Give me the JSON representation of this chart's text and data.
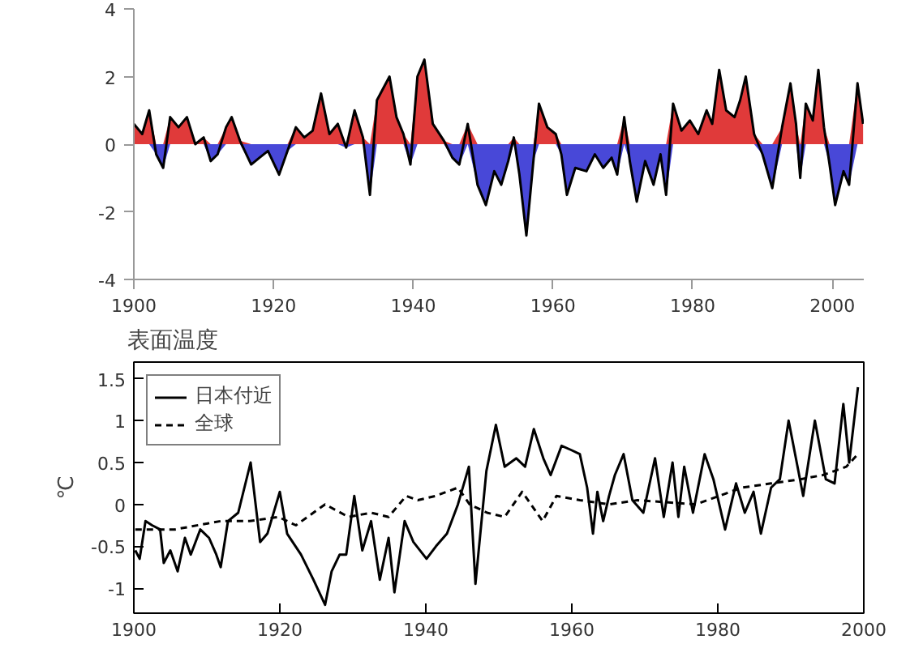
{
  "chart_data": [
    {
      "type": "area",
      "x": [
        1900.0,
        1901.2,
        1902.2,
        1903.2,
        1904.2,
        1905.2,
        1906.4,
        1907.6,
        1908.8,
        1910.0,
        1911.0,
        1912.0,
        1913.2,
        1914.0,
        1915.2,
        1916.8,
        1918.0,
        1919.2,
        1920.8,
        1922.0,
        1923.2,
        1924.4,
        1925.6,
        1926.8,
        1928.0,
        1929.2,
        1930.4,
        1931.6,
        1932.8,
        1933.8,
        1934.8,
        1936.6,
        1937.6,
        1938.6,
        1939.6,
        1940.6,
        1941.6,
        1942.8,
        1944.4,
        1945.6,
        1946.6,
        1947.8,
        1949.2,
        1950.4,
        1951.6,
        1952.6,
        1953.6,
        1954.4,
        1955.2,
        1956.2,
        1957.2,
        1958.0,
        1959.2,
        1960.4,
        1961.2,
        1962.0,
        1963.2,
        1964.8,
        1966.0,
        1967.2,
        1968.4,
        1969.2,
        1970.2,
        1971.0,
        1972.0,
        1973.2,
        1974.4,
        1975.4,
        1976.2,
        1977.2,
        1978.4,
        1979.6,
        1980.8,
        1982.0,
        1982.8,
        1983.8,
        1984.8,
        1986.0,
        1986.8,
        1987.6,
        1988.8,
        1990.0,
        1991.4,
        1992.8,
        1994.0,
        1994.8,
        1995.4,
        1996.2,
        1997.2,
        1998.0,
        1998.8,
        1999.6,
        2000.4,
        2001.6,
        2002.4,
        2003.6,
        2004.4
      ],
      "series": [
        {
          "type": "area",
          "color": "#e03a3a",
          "values": [
            0.6,
            0.3,
            1.0,
            0,
            0,
            0.8,
            0.5,
            0.8,
            0,
            0.2,
            0,
            0,
            0.5,
            0.8,
            0.1,
            0,
            0,
            0,
            0,
            0,
            0.5,
            0.2,
            0.4,
            1.5,
            0.3,
            0.6,
            0,
            1.0,
            0.2,
            0,
            1.3,
            2.0,
            0.8,
            0.3,
            0,
            2.0,
            2.5,
            0.6,
            0.1,
            0,
            0,
            0.6,
            0,
            0,
            0,
            0,
            0,
            0.2,
            0,
            0,
            0,
            1.2,
            0.5,
            0.3,
            0,
            0,
            0,
            0,
            0,
            0,
            0,
            0,
            0.8,
            0,
            0,
            0,
            0,
            0,
            0,
            1.2,
            0.4,
            0.7,
            0.3,
            1.0,
            0.6,
            2.2,
            1.0,
            0.8,
            1.3,
            2.0,
            0.3,
            0,
            0,
            0.5,
            1.8,
            0.6,
            0,
            1.2,
            0.7,
            2.2,
            0.5,
            0,
            0,
            0,
            0,
            1.8,
            0.6
          ]
        },
        {
          "type": "area",
          "color": "#4848d8",
          "values": [
            0,
            0,
            0,
            -0.3,
            -0.7,
            0,
            0,
            0,
            0,
            0,
            -0.5,
            -0.3,
            0,
            0,
            0,
            -0.6,
            -0.4,
            -0.2,
            -0.9,
            -0.2,
            0,
            0,
            0,
            0,
            0,
            0,
            -0.1,
            0,
            0,
            -1.5,
            0,
            0,
            0,
            0,
            -0.6,
            0,
            0,
            0,
            0,
            -0.4,
            -0.6,
            0,
            -1.2,
            -1.8,
            -0.8,
            -1.2,
            -0.5,
            0,
            -0.9,
            -2.7,
            -0.5,
            0,
            0,
            0,
            -0.3,
            -1.5,
            -0.7,
            -0.8,
            -0.3,
            -0.7,
            -0.4,
            -0.9,
            0,
            -0.5,
            -1.7,
            -0.5,
            -1.2,
            -0.3,
            -1.5,
            0,
            0,
            0,
            0,
            0,
            0,
            0,
            0,
            0,
            0,
            0,
            0,
            -0.3,
            -1.3,
            0,
            0,
            0,
            -1.0,
            0,
            0,
            0,
            0,
            -0.6,
            -1.8,
            -0.8,
            -1.2,
            0,
            0
          ]
        },
        {
          "type": "line",
          "color": "#000000",
          "values": [
            0.6,
            0.3,
            1.0,
            -0.3,
            -0.7,
            0.8,
            0.5,
            0.8,
            0.0,
            0.2,
            -0.5,
            -0.3,
            0.5,
            0.8,
            0.1,
            -0.6,
            -0.4,
            -0.2,
            -0.9,
            -0.2,
            0.5,
            0.2,
            0.4,
            1.5,
            0.3,
            0.6,
            -0.1,
            1.0,
            0.2,
            -1.5,
            1.3,
            2.0,
            0.8,
            0.3,
            -0.6,
            2.0,
            2.5,
            0.6,
            0.1,
            -0.4,
            -0.6,
            0.6,
            -1.2,
            -1.8,
            -0.8,
            -1.2,
            -0.5,
            0.2,
            -0.9,
            -2.7,
            -0.5,
            1.2,
            0.5,
            0.3,
            -0.3,
            -1.5,
            -0.7,
            -0.8,
            -0.3,
            -0.7,
            -0.4,
            -0.9,
            0.8,
            -0.5,
            -1.7,
            -0.5,
            -1.2,
            -0.3,
            -1.5,
            1.2,
            0.4,
            0.7,
            0.3,
            1.0,
            0.6,
            2.2,
            1.0,
            0.8,
            1.3,
            2.0,
            0.3,
            -0.3,
            -1.3,
            0.5,
            1.8,
            0.6,
            -1.0,
            1.2,
            0.7,
            2.2,
            0.5,
            -0.6,
            -1.8,
            -0.8,
            -1.2,
            1.8,
            0.6
          ]
        }
      ],
      "xlim": [
        1900,
        2004.5
      ],
      "ylim": [
        -4,
        4
      ],
      "xticks": [
        1900,
        1920,
        1940,
        1960,
        1980,
        2000
      ],
      "yticks": [
        -4,
        -2,
        0,
        2,
        4
      ]
    },
    {
      "type": "line",
      "title": "表面温度",
      "ylabel": "℃",
      "legend": "top left",
      "series": [
        {
          "name": "日本付近",
          "color": "#000000",
          "line_style": "solid",
          "x": [
            1900.2,
            1900.8,
            1901.6,
            1902.5,
            1903.6,
            1904.1,
            1905.0,
            1906.0,
            1907.0,
            1907.8,
            1909.1,
            1910.3,
            1911.3,
            1911.9,
            1912.9,
            1914.3,
            1916.0,
            1917.3,
            1918.3,
            1920.0,
            1921.0,
            1922.9,
            1924.6,
            1926.2,
            1927.1,
            1928.2,
            1929.1,
            1930.2,
            1931.3,
            1932.5,
            1933.7,
            1934.9,
            1935.7,
            1937.1,
            1938.3,
            1940.1,
            1941.4,
            1942.9,
            1944.4,
            1945.9,
            1946.8,
            1948.3,
            1949.6,
            1950.8,
            1952.4,
            1953.6,
            1954.8,
            1956.1,
            1957.1,
            1958.6,
            1959.9,
            1961.1,
            1962.1,
            1962.9,
            1963.5,
            1964.3,
            1965.1,
            1965.9,
            1967.1,
            1968.3,
            1969.8,
            1971.4,
            1972.6,
            1973.8,
            1974.6,
            1975.4,
            1976.6,
            1978.2,
            1979.4,
            1981.0,
            1982.5,
            1983.7,
            1984.9,
            1985.9,
            1987.3,
            1988.5,
            1989.7,
            1991.7,
            1993.3,
            1994.8,
            1996.0,
            1997.2,
            1998.0,
            1999.2
          ],
          "values": [
            -0.55,
            -0.65,
            -0.2,
            -0.25,
            -0.3,
            -0.7,
            -0.55,
            -0.8,
            -0.4,
            -0.6,
            -0.3,
            -0.4,
            -0.6,
            -0.75,
            -0.2,
            -0.1,
            0.5,
            -0.45,
            -0.35,
            0.15,
            -0.35,
            -0.6,
            -0.9,
            -1.2,
            -0.8,
            -0.6,
            -0.6,
            0.1,
            -0.55,
            -0.2,
            -0.9,
            -0.4,
            -1.05,
            -0.2,
            -0.45,
            -0.65,
            -0.5,
            -0.35,
            0.0,
            0.45,
            -0.95,
            0.4,
            0.95,
            0.45,
            0.55,
            0.45,
            0.9,
            0.55,
            0.35,
            0.7,
            0.65,
            0.6,
            0.2,
            -0.35,
            0.15,
            -0.2,
            0.1,
            0.35,
            0.6,
            0.05,
            -0.1,
            0.55,
            -0.15,
            0.5,
            -0.15,
            0.45,
            -0.1,
            0.6,
            0.3,
            -0.3,
            0.25,
            -0.1,
            0.15,
            -0.35,
            0.2,
            0.3,
            1.0,
            0.1,
            1.0,
            0.3,
            0.25,
            1.2,
            0.5,
            1.4
          ]
        },
        {
          "name": "全球",
          "color": "#000000",
          "line_style": "dashed",
          "x": [
            1900.2,
            1905.6,
            1911.9,
            1915.9,
            1919.8,
            1922.2,
            1926.2,
            1929.4,
            1932.5,
            1934.9,
            1937.3,
            1938.9,
            1941.3,
            1944.4,
            1946.0,
            1948.4,
            1950.8,
            1953.2,
            1956.0,
            1957.9,
            1961.1,
            1965.1,
            1969.0,
            1977.0,
            1983.3,
            1987.3,
            1991.3,
            1994.4,
            1997.6,
            1999.2
          ],
          "values": [
            -0.3,
            -0.3,
            -0.2,
            -0.2,
            -0.15,
            -0.25,
            0.0,
            -0.15,
            -0.1,
            -0.15,
            0.1,
            0.05,
            0.1,
            0.2,
            0.0,
            -0.1,
            -0.15,
            0.15,
            -0.2,
            0.1,
            0.05,
            0.0,
            0.05,
            0.0,
            0.2,
            0.25,
            0.3,
            0.35,
            0.45,
            0.6
          ]
        }
      ],
      "xlim": [
        1900,
        2000
      ],
      "ylim": [
        -1.3,
        1.7
      ],
      "xticks": [
        1900,
        1920,
        1940,
        1960,
        1980,
        2000
      ],
      "yticks": [
        -1,
        -0.5,
        0,
        0.5,
        1,
        1.5
      ]
    }
  ]
}
